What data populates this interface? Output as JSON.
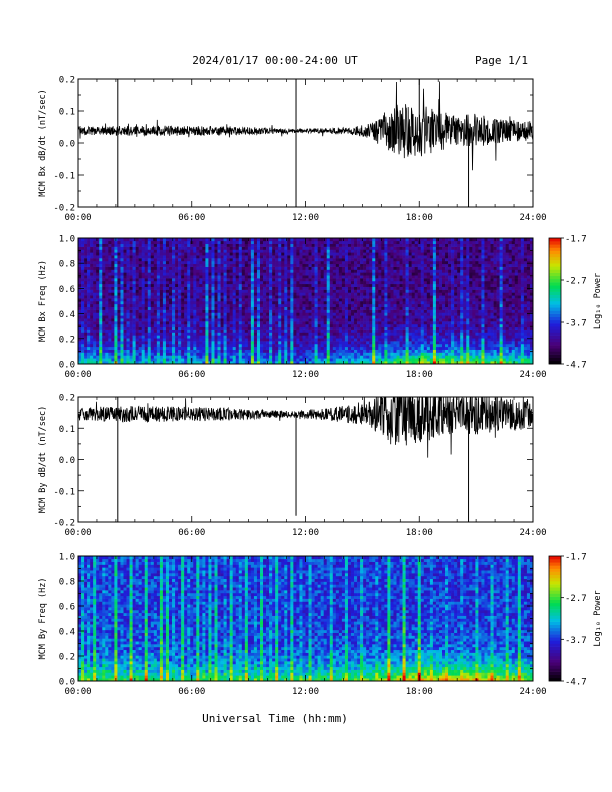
{
  "header": {
    "date_range": "2024/01/17  00:00-24:00 UT",
    "page": "Page 1/1"
  },
  "footer": {
    "xlabel": "Universal Time (hh:mm)"
  },
  "chart_data": [
    {
      "type": "line",
      "ylabel": "MCM Bx dB/dt (nT/sec)",
      "xlim": [
        0,
        24
      ],
      "ylim": [
        -0.2,
        0.2
      ],
      "x_ticks": [
        "00:00",
        "06:00",
        "12:00",
        "18:00",
        "24:00"
      ],
      "y_ticks": [
        "-0.2",
        "-0.1",
        "0.0",
        "0.1",
        "0.2"
      ],
      "y_tick_values": [
        -0.2,
        -0.1,
        0.0,
        0.1,
        0.2
      ],
      "baseline": 0.038,
      "color": "#000000",
      "amplitude_profile": [
        [
          0,
          0.012
        ],
        [
          2,
          0.015
        ],
        [
          5,
          0.016
        ],
        [
          8,
          0.014
        ],
        [
          10,
          0.01
        ],
        [
          11.5,
          0.006
        ],
        [
          13,
          0.008
        ],
        [
          14.5,
          0.012
        ],
        [
          15.5,
          0.025
        ],
        [
          16.5,
          0.08
        ],
        [
          17.5,
          0.09
        ],
        [
          18.5,
          0.075
        ],
        [
          20,
          0.045
        ],
        [
          21,
          0.055
        ],
        [
          22,
          0.04
        ],
        [
          24,
          0.03
        ]
      ],
      "spikes": [
        [
          2.1,
          -0.2
        ],
        [
          2.1,
          0.2
        ],
        [
          11.5,
          -0.2
        ],
        [
          11.5,
          0.2
        ],
        [
          18.0,
          0.2
        ],
        [
          20.6,
          -0.2
        ]
      ]
    },
    {
      "type": "heatmap",
      "ylabel": "MCM Bx Freq (Hz)",
      "xlim": [
        0,
        24
      ],
      "ylim": [
        0,
        1
      ],
      "x_ticks": [
        "00:00",
        "06:00",
        "12:00",
        "18:00",
        "24:00"
      ],
      "y_ticks": [
        "0.0",
        "0.2",
        "0.4",
        "0.6",
        "0.8",
        "1.0"
      ],
      "y_tick_values": [
        0,
        0.2,
        0.4,
        0.6,
        0.8,
        1.0
      ],
      "colorbar": {
        "label": "Log₁₀ Power",
        "min": -4.7,
        "max": -1.7,
        "ticks": [
          "-1.7",
          "-2.7",
          "-3.7",
          "-4.7"
        ],
        "tick_values": [
          -1.7,
          -2.7,
          -3.7,
          -4.7
        ]
      },
      "background_level": -4.2,
      "low_freq_level_profile": [
        [
          0,
          -3.1
        ],
        [
          6,
          -3.3
        ],
        [
          12,
          -3.4
        ],
        [
          15,
          -3.0
        ],
        [
          18,
          -2.4
        ],
        [
          21,
          -2.5
        ],
        [
          24,
          -2.8
        ]
      ],
      "stripe_times": [
        0.3,
        0.5,
        0.8,
        1.2,
        1.6,
        2.0,
        2.3,
        2.7,
        3.0,
        3.5,
        3.8,
        4.2,
        4.6,
        5.0,
        5.3,
        5.8,
        6.1,
        6.4,
        6.8,
        7.1,
        7.4,
        7.8,
        8.3,
        8.6,
        9.2,
        9.5,
        10.2,
        10.6,
        11.0,
        11.3,
        12.6,
        13.2,
        14.1,
        15.6,
        16.2,
        17.4,
        18.1,
        18.8,
        19.7,
        20.2,
        20.6,
        21.4,
        22.3,
        23.5
      ]
    },
    {
      "type": "line",
      "ylabel": "MCM By dB/dt (nT/sec)",
      "xlim": [
        0,
        24
      ],
      "ylim": [
        -0.2,
        0.2
      ],
      "x_ticks": [
        "00:00",
        "06:00",
        "12:00",
        "18:00",
        "24:00"
      ],
      "y_ticks": [
        "-0.2",
        "-0.1",
        "0.0",
        "0.1",
        "0.2"
      ],
      "y_tick_values": [
        -0.2,
        -0.1,
        0.0,
        0.1,
        0.2
      ],
      "baseline": 0.145,
      "color": "#000000",
      "amplitude_profile": [
        [
          0,
          0.022
        ],
        [
          2,
          0.025
        ],
        [
          5,
          0.025
        ],
        [
          8,
          0.02
        ],
        [
          10,
          0.013
        ],
        [
          11.5,
          0.01
        ],
        [
          13,
          0.02
        ],
        [
          14.5,
          0.03
        ],
        [
          15.5,
          0.045
        ],
        [
          16.5,
          0.1
        ],
        [
          17.5,
          0.1
        ],
        [
          18.5,
          0.085
        ],
        [
          20,
          0.06
        ],
        [
          21,
          0.07
        ],
        [
          22,
          0.055
        ],
        [
          24,
          0.05
        ]
      ],
      "spikes": [
        [
          2.1,
          -0.2
        ],
        [
          2.1,
          0.2
        ],
        [
          11.5,
          -0.18
        ],
        [
          18.0,
          0.2
        ],
        [
          20.6,
          -0.2
        ]
      ]
    },
    {
      "type": "heatmap",
      "ylabel": "MCM By Freq (Hz)",
      "xlim": [
        0,
        24
      ],
      "ylim": [
        0,
        1
      ],
      "x_ticks": [
        "00:00",
        "06:00",
        "12:00",
        "18:00",
        "24:00"
      ],
      "y_ticks": [
        "0.0",
        "0.2",
        "0.4",
        "0.6",
        "0.8",
        "1.0"
      ],
      "y_tick_values": [
        0,
        0.2,
        0.4,
        0.6,
        0.8,
        1.0
      ],
      "colorbar": {
        "label": "Log₁₀ Power",
        "min": -4.7,
        "max": -1.7,
        "ticks": [
          "-1.7",
          "-2.7",
          "-3.7",
          "-4.7"
        ],
        "tick_values": [
          -1.7,
          -2.7,
          -3.7,
          -4.7
        ]
      },
      "background_level": -3.7,
      "low_freq_level_profile": [
        [
          0,
          -2.7
        ],
        [
          6,
          -2.9
        ],
        [
          12,
          -2.8
        ],
        [
          15,
          -2.6
        ],
        [
          18,
          -2.1
        ],
        [
          21,
          -2.1
        ],
        [
          24,
          -2.5
        ]
      ],
      "stripe_times": [
        0.2,
        0.5,
        0.9,
        1.3,
        1.6,
        2.0,
        2.4,
        2.8,
        3.2,
        3.6,
        4.0,
        4.4,
        4.7,
        5.1,
        5.5,
        5.9,
        6.3,
        6.7,
        7.0,
        7.3,
        7.7,
        8.1,
        8.5,
        8.9,
        9.3,
        9.7,
        10.1,
        10.5,
        10.9,
        11.3,
        11.7,
        12.2,
        12.8,
        13.4,
        14.2,
        15.0,
        15.7,
        16.4,
        17.2,
        18.0,
        18.7,
        19.5,
        20.3,
        21.0,
        21.8,
        22.6,
        23.3
      ]
    }
  ]
}
